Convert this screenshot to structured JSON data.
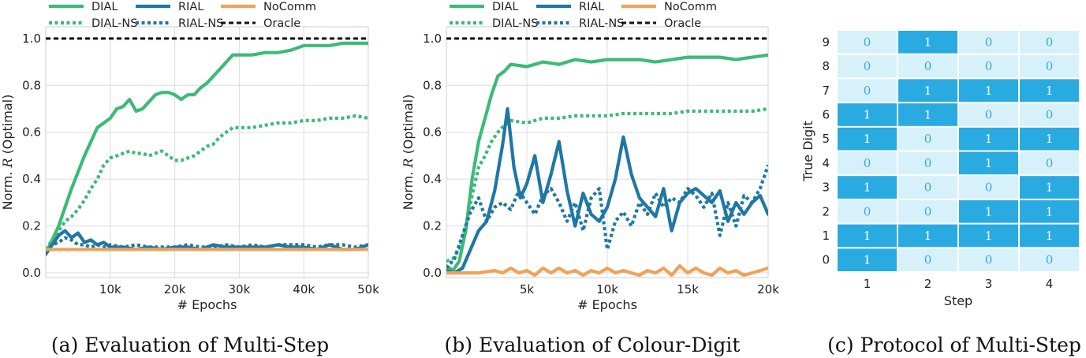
{
  "colors": {
    "dial": "#3dba78",
    "rial": "#1f77a4",
    "nocomm": "#f0a25a",
    "oracle": "#111111",
    "cell_one": "#29abe2",
    "cell_zero": "#d7f1fb",
    "text_one": "#ffffff",
    "text_zero": "#3aa8d8"
  },
  "chart_data": [
    {
      "type": "line",
      "title": "",
      "caption": "(a) Evaluation of Multi-Step",
      "xlabel": "# Epochs",
      "ylabel": "Norm. R (Optimal)",
      "ylabel_parts": [
        "Norm. ",
        "R",
        " (Optimal)"
      ],
      "xlim": [
        0,
        50000
      ],
      "ylim": [
        -0.02,
        1.05
      ],
      "xticks": [
        10000,
        20000,
        30000,
        40000,
        50000
      ],
      "xtick_labels": [
        "10k",
        "20k",
        "30k",
        "40k",
        "50k"
      ],
      "yticks": [
        0.0,
        0.2,
        0.4,
        0.6,
        0.8,
        1.0
      ],
      "ytick_labels": [
        "0.0",
        "0.2",
        "0.4",
        "0.6",
        "0.8",
        "1.0"
      ],
      "legend": [
        {
          "name": "DIAL",
          "color": "dial",
          "dash": "solid"
        },
        {
          "name": "RIAL",
          "color": "rial",
          "dash": "solid"
        },
        {
          "name": "NoComm",
          "color": "nocomm",
          "dash": "solid"
        },
        {
          "name": "DIAL-NS",
          "color": "dial",
          "dash": "dotted"
        },
        {
          "name": "RIAL-NS",
          "color": "rial",
          "dash": "dotted"
        },
        {
          "name": "Oracle",
          "color": "oracle",
          "dash": "dashed"
        }
      ],
      "series": [
        {
          "name": "DIAL",
          "color": "dial",
          "dash": "solid",
          "x": [
            0,
            1000,
            2000,
            3000,
            4000,
            5000,
            6000,
            7000,
            8000,
            9000,
            10000,
            11000,
            12000,
            13000,
            14000,
            15000,
            16000,
            17000,
            18000,
            19000,
            20000,
            21000,
            22000,
            23000,
            24000,
            25000,
            26000,
            27000,
            28000,
            29000,
            30000,
            32000,
            34000,
            36000,
            38000,
            40000,
            42000,
            44000,
            46000,
            48000,
            50000
          ],
          "y": [
            0.08,
            0.14,
            0.2,
            0.28,
            0.36,
            0.43,
            0.5,
            0.56,
            0.62,
            0.64,
            0.66,
            0.7,
            0.71,
            0.74,
            0.69,
            0.7,
            0.73,
            0.76,
            0.77,
            0.77,
            0.76,
            0.74,
            0.76,
            0.76,
            0.79,
            0.81,
            0.84,
            0.87,
            0.9,
            0.93,
            0.93,
            0.93,
            0.94,
            0.94,
            0.95,
            0.97,
            0.97,
            0.97,
            0.98,
            0.98,
            0.98
          ]
        },
        {
          "name": "DIAL-NS",
          "color": "dial",
          "dash": "dotted",
          "x": [
            0,
            1000,
            2000,
            3000,
            4000,
            5000,
            6000,
            7000,
            8000,
            9000,
            10000,
            11000,
            12000,
            13000,
            14000,
            15000,
            16000,
            17000,
            18000,
            19000,
            20000,
            21000,
            22000,
            23000,
            24000,
            25000,
            26000,
            27000,
            28000,
            29000,
            30000,
            32000,
            34000,
            36000,
            38000,
            40000,
            42000,
            44000,
            46000,
            48000,
            50000
          ],
          "y": [
            0.1,
            0.14,
            0.18,
            0.22,
            0.24,
            0.27,
            0.31,
            0.36,
            0.4,
            0.46,
            0.49,
            0.5,
            0.51,
            0.52,
            0.51,
            0.51,
            0.5,
            0.51,
            0.52,
            0.5,
            0.48,
            0.48,
            0.49,
            0.5,
            0.52,
            0.54,
            0.55,
            0.58,
            0.6,
            0.62,
            0.62,
            0.62,
            0.63,
            0.64,
            0.64,
            0.65,
            0.65,
            0.66,
            0.66,
            0.67,
            0.66
          ]
        },
        {
          "name": "RIAL",
          "color": "rial",
          "dash": "solid",
          "x": [
            0,
            1000,
            2000,
            3000,
            4000,
            5000,
            6000,
            7000,
            8000,
            9000,
            10000,
            12000,
            14000,
            16000,
            18000,
            20000,
            22000,
            24000,
            26000,
            28000,
            30000,
            32000,
            34000,
            36000,
            38000,
            40000,
            42000,
            44000,
            46000,
            48000,
            50000
          ],
          "y": [
            0.08,
            0.12,
            0.16,
            0.18,
            0.15,
            0.17,
            0.13,
            0.14,
            0.12,
            0.13,
            0.11,
            0.11,
            0.1,
            0.11,
            0.1,
            0.11,
            0.11,
            0.1,
            0.12,
            0.11,
            0.11,
            0.11,
            0.11,
            0.12,
            0.11,
            0.11,
            0.1,
            0.12,
            0.1,
            0.1,
            0.12
          ]
        },
        {
          "name": "RIAL-NS",
          "color": "rial",
          "dash": "dotted",
          "x": [
            0,
            1000,
            2000,
            3000,
            4000,
            5000,
            6000,
            7000,
            8000,
            9000,
            10000,
            12000,
            14000,
            16000,
            18000,
            20000,
            22000,
            24000,
            26000,
            28000,
            30000,
            32000,
            34000,
            36000,
            38000,
            40000,
            42000,
            44000,
            46000,
            48000,
            50000
          ],
          "y": [
            0.09,
            0.12,
            0.13,
            0.15,
            0.14,
            0.12,
            0.12,
            0.11,
            0.12,
            0.11,
            0.12,
            0.11,
            0.12,
            0.11,
            0.11,
            0.11,
            0.12,
            0.11,
            0.11,
            0.12,
            0.11,
            0.12,
            0.11,
            0.12,
            0.12,
            0.12,
            0.11,
            0.12,
            0.12,
            0.11,
            0.12
          ]
        },
        {
          "name": "NoComm",
          "color": "nocomm",
          "dash": "solid",
          "x": [
            0,
            2000,
            4000,
            6000,
            8000,
            10000,
            15000,
            20000,
            25000,
            30000,
            35000,
            40000,
            45000,
            50000
          ],
          "y": [
            0.1,
            0.1,
            0.1,
            0.1,
            0.1,
            0.1,
            0.1,
            0.1,
            0.1,
            0.1,
            0.1,
            0.1,
            0.1,
            0.1
          ]
        },
        {
          "name": "Oracle",
          "color": "oracle",
          "dash": "dashed",
          "x": [
            0,
            50000
          ],
          "y": [
            1.0,
            1.0
          ]
        }
      ]
    },
    {
      "type": "line",
      "title": "",
      "caption": "(b) Evaluation of Colour-Digit",
      "xlabel": "# Epochs",
      "ylabel": "Norm. R (Optimal)",
      "ylabel_parts": [
        "Norm. ",
        "R",
        " (Optimal)"
      ],
      "xlim": [
        0,
        20000
      ],
      "ylim": [
        -0.02,
        1.05
      ],
      "xticks": [
        5000,
        10000,
        15000,
        20000
      ],
      "xtick_labels": [
        "5k",
        "10k",
        "15k",
        "20k"
      ],
      "yticks": [
        0.0,
        0.2,
        0.4,
        0.6,
        0.8,
        1.0
      ],
      "ytick_labels": [
        "0.0",
        "0.2",
        "0.4",
        "0.6",
        "0.8",
        "1.0"
      ],
      "legend": [
        {
          "name": "DIAL",
          "color": "dial",
          "dash": "solid"
        },
        {
          "name": "RIAL",
          "color": "rial",
          "dash": "solid"
        },
        {
          "name": "NoComm",
          "color": "nocomm",
          "dash": "solid"
        },
        {
          "name": "DIAL-NS",
          "color": "dial",
          "dash": "dotted"
        },
        {
          "name": "RIAL-NS",
          "color": "rial",
          "dash": "dotted"
        },
        {
          "name": "Oracle",
          "color": "oracle",
          "dash": "dashed"
        }
      ],
      "series": [
        {
          "name": "DIAL",
          "color": "dial",
          "dash": "solid",
          "x": [
            0,
            400,
            800,
            1200,
            1600,
            2000,
            2400,
            2800,
            3200,
            3600,
            4000,
            5000,
            6000,
            7000,
            8000,
            9000,
            10000,
            11000,
            12000,
            13000,
            14000,
            15000,
            16000,
            17000,
            18000,
            19000,
            20000
          ],
          "y": [
            0.03,
            0.01,
            0.05,
            0.18,
            0.4,
            0.56,
            0.66,
            0.76,
            0.84,
            0.86,
            0.89,
            0.88,
            0.9,
            0.89,
            0.91,
            0.9,
            0.91,
            0.91,
            0.91,
            0.9,
            0.91,
            0.92,
            0.92,
            0.92,
            0.91,
            0.92,
            0.93
          ]
        },
        {
          "name": "DIAL-NS",
          "color": "dial",
          "dash": "dotted",
          "x": [
            0,
            400,
            800,
            1200,
            1600,
            2000,
            2400,
            2800,
            3200,
            3600,
            4000,
            5000,
            6000,
            7000,
            8000,
            9000,
            10000,
            11000,
            12000,
            13000,
            14000,
            15000,
            16000,
            17000,
            18000,
            19000,
            20000
          ],
          "y": [
            0.05,
            0.06,
            0.1,
            0.2,
            0.33,
            0.45,
            0.5,
            0.56,
            0.6,
            0.63,
            0.65,
            0.64,
            0.66,
            0.66,
            0.67,
            0.67,
            0.67,
            0.68,
            0.68,
            0.68,
            0.68,
            0.69,
            0.69,
            0.69,
            0.69,
            0.69,
            0.7
          ]
        },
        {
          "name": "RIAL",
          "color": "rial",
          "dash": "solid",
          "x": [
            0,
            500,
            1000,
            1500,
            2000,
            2500,
            3000,
            3500,
            3800,
            4200,
            4600,
            5000,
            5500,
            6000,
            6500,
            7000,
            7500,
            8000,
            8500,
            9000,
            9500,
            10000,
            10500,
            11000,
            11500,
            12000,
            12500,
            13000,
            13500,
            14000,
            14500,
            15000,
            15500,
            16000,
            16500,
            17000,
            17500,
            18000,
            18500,
            19000,
            19500,
            20000
          ],
          "y": [
            0.01,
            0.0,
            0.02,
            0.1,
            0.18,
            0.22,
            0.35,
            0.55,
            0.7,
            0.45,
            0.32,
            0.38,
            0.5,
            0.3,
            0.42,
            0.56,
            0.35,
            0.2,
            0.34,
            0.25,
            0.22,
            0.28,
            0.4,
            0.58,
            0.42,
            0.32,
            0.28,
            0.24,
            0.36,
            0.18,
            0.3,
            0.34,
            0.36,
            0.33,
            0.3,
            0.35,
            0.22,
            0.3,
            0.25,
            0.3,
            0.33,
            0.25
          ]
        },
        {
          "name": "RIAL-NS",
          "color": "rial",
          "dash": "dotted",
          "x": [
            0,
            500,
            1000,
            1500,
            2000,
            2500,
            3000,
            3500,
            4000,
            4500,
            5000,
            5500,
            6000,
            6500,
            7000,
            7500,
            8000,
            8500,
            9000,
            9500,
            10000,
            10500,
            11000,
            11500,
            12000,
            12500,
            13000,
            13500,
            14000,
            14500,
            15000,
            15500,
            16000,
            16500,
            17000,
            17500,
            18000,
            18500,
            19000,
            19500,
            20000
          ],
          "y": [
            0.02,
            0.06,
            0.16,
            0.26,
            0.32,
            0.22,
            0.28,
            0.3,
            0.27,
            0.35,
            0.3,
            0.25,
            0.33,
            0.36,
            0.3,
            0.22,
            0.3,
            0.18,
            0.32,
            0.36,
            0.1,
            0.22,
            0.26,
            0.2,
            0.3,
            0.25,
            0.34,
            0.28,
            0.32,
            0.3,
            0.36,
            0.33,
            0.28,
            0.34,
            0.16,
            0.3,
            0.2,
            0.33,
            0.3,
            0.36,
            0.46
          ]
        },
        {
          "name": "NoComm",
          "color": "nocomm",
          "dash": "solid",
          "x": [
            0,
            1000,
            2000,
            3000,
            3500,
            4000,
            4500,
            5000,
            5500,
            6000,
            6500,
            7000,
            7500,
            8000,
            8500,
            9000,
            9500,
            10000,
            10500,
            11000,
            11500,
            12000,
            12500,
            13000,
            13500,
            14000,
            14500,
            15000,
            15500,
            16000,
            16500,
            17000,
            17500,
            18000,
            18500,
            19000,
            19500,
            20000
          ],
          "y": [
            0.0,
            0.0,
            0.0,
            0.01,
            0.0,
            0.02,
            0.0,
            0.01,
            -0.01,
            0.02,
            0.0,
            0.02,
            0.0,
            0.01,
            -0.01,
            0.01,
            0.0,
            0.02,
            0.0,
            0.01,
            0.0,
            -0.01,
            0.01,
            0.0,
            0.02,
            -0.01,
            0.03,
            0.0,
            0.02,
            0.0,
            -0.01,
            0.02,
            0.0,
            0.01,
            -0.01,
            0.0,
            0.01,
            0.02
          ]
        },
        {
          "name": "Oracle",
          "color": "oracle",
          "dash": "dashed",
          "x": [
            0,
            20000
          ],
          "y": [
            1.0,
            1.0
          ]
        }
      ]
    },
    {
      "type": "heatmap",
      "title": "",
      "caption": "(c) Protocol of Multi-Step",
      "xlabel": "Step",
      "ylabel": "True Digit",
      "x_labels": [
        "1",
        "2",
        "3",
        "4"
      ],
      "y_labels": [
        "9",
        "8",
        "7",
        "6",
        "5",
        "4",
        "3",
        "2",
        "1",
        "0"
      ],
      "values": [
        [
          0,
          1,
          0,
          0
        ],
        [
          0,
          0,
          0,
          0
        ],
        [
          0,
          1,
          1,
          1
        ],
        [
          1,
          1,
          0,
          0
        ],
        [
          1,
          0,
          1,
          1
        ],
        [
          0,
          0,
          1,
          0
        ],
        [
          1,
          0,
          0,
          1
        ],
        [
          0,
          0,
          1,
          1
        ],
        [
          1,
          1,
          1,
          1
        ],
        [
          1,
          0,
          0,
          0
        ]
      ]
    }
  ]
}
